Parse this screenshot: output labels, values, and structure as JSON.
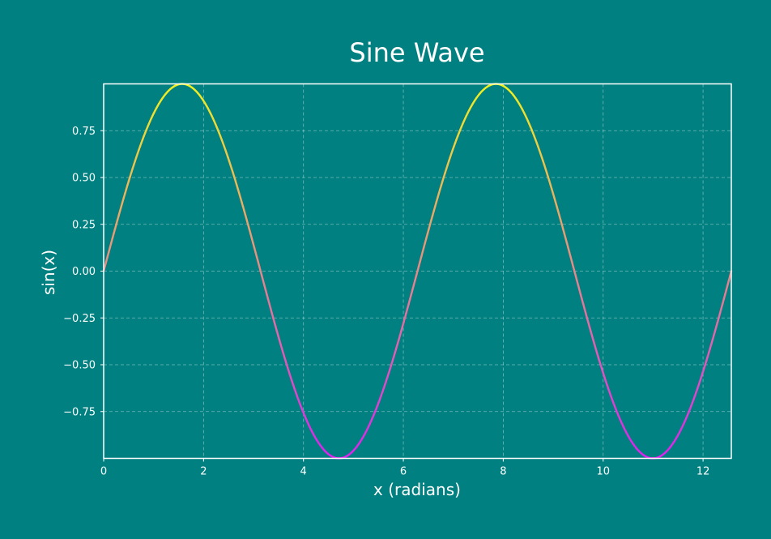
{
  "chart_data": {
    "type": "line",
    "title": "Sine Wave",
    "xlabel": "x (radians)",
    "ylabel": "sin(x)",
    "xlim": [
      0,
      12.566
    ],
    "ylim": [
      -1,
      1
    ],
    "xticks": [
      0,
      2,
      4,
      6,
      8,
      10,
      12
    ],
    "xtick_labels": [
      "0",
      "2",
      "4",
      "6",
      "8",
      "10",
      "12"
    ],
    "yticks": [
      -0.75,
      -0.5,
      -0.25,
      0,
      0.25,
      0.5,
      0.75
    ],
    "ytick_labels": [
      "−0.75",
      "−0.50",
      "−0.25",
      "0.00",
      "0.25",
      "0.50",
      "0.75"
    ],
    "grid": true,
    "series": [
      {
        "function": "sin(x)",
        "x_range": [
          0,
          12.566
        ],
        "color_map": {
          "min": "#e020f0",
          "max": "#f0f020"
        }
      }
    ],
    "colors": {
      "background": "#008080",
      "text": "#ffffff"
    }
  }
}
